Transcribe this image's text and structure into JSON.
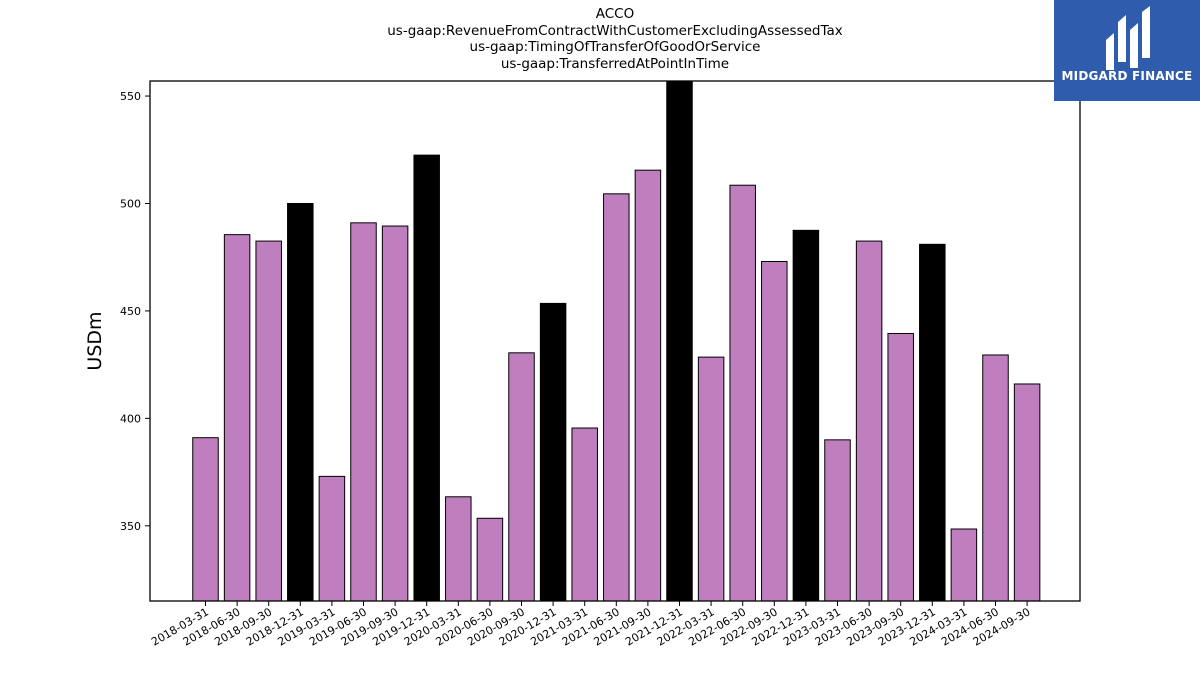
{
  "header": {
    "title_lines": [
      "ACCO",
      "us-gaap:RevenueFromContractWithCustomerExcludingAssessedTax",
      "us-gaap:TimingOfTransferOfGoodOrService",
      "us-gaap:TransferredAtPointInTime"
    ]
  },
  "logo": {
    "text": "MIDGARD FINANCE",
    "background": "#2f5cad",
    "icon": "midgard-logo-icon"
  },
  "colors": {
    "bar": "#bf7fbf",
    "bar_highlight": "#000000",
    "edge": "#000000"
  },
  "chart_data": {
    "type": "bar",
    "title": "ACCO us-gaap:RevenueFromContractWithCustomerExcludingAssessedTax us-gaap:TimingOfTransferOfGoodOrService us-gaap:TransferredAtPointInTime",
    "xlabel": "",
    "ylabel": "USDm",
    "ylim": [
      315,
      557
    ],
    "yticks": [
      350,
      400,
      450,
      500,
      550
    ],
    "grid": false,
    "categories": [
      "2018-03-31",
      "2018-06-30",
      "2018-09-30",
      "2018-12-31",
      "2019-03-31",
      "2019-06-30",
      "2019-09-30",
      "2019-12-31",
      "2020-03-31",
      "2020-06-30",
      "2020-09-30",
      "2020-12-31",
      "2021-03-31",
      "2021-06-30",
      "2021-09-30",
      "2021-12-31",
      "2022-03-31",
      "2022-06-30",
      "2022-09-30",
      "2022-12-31",
      "2023-03-31",
      "2023-06-30",
      "2023-09-30",
      "2023-12-31",
      "2024-03-31",
      "2024-06-30",
      "2024-09-30"
    ],
    "values": [
      391,
      485.5,
      482.5,
      500,
      373,
      491,
      489.5,
      522.5,
      363.5,
      353.5,
      430.5,
      453.5,
      395.5,
      504.5,
      515.5,
      557,
      428.5,
      508.5,
      473,
      487.5,
      390,
      482.5,
      439.5,
      481,
      348.5,
      429.5,
      416
    ],
    "highlighted": [
      false,
      false,
      false,
      true,
      false,
      false,
      false,
      true,
      false,
      false,
      false,
      true,
      false,
      false,
      false,
      true,
      false,
      false,
      false,
      true,
      false,
      false,
      false,
      true,
      false,
      false,
      false
    ]
  }
}
